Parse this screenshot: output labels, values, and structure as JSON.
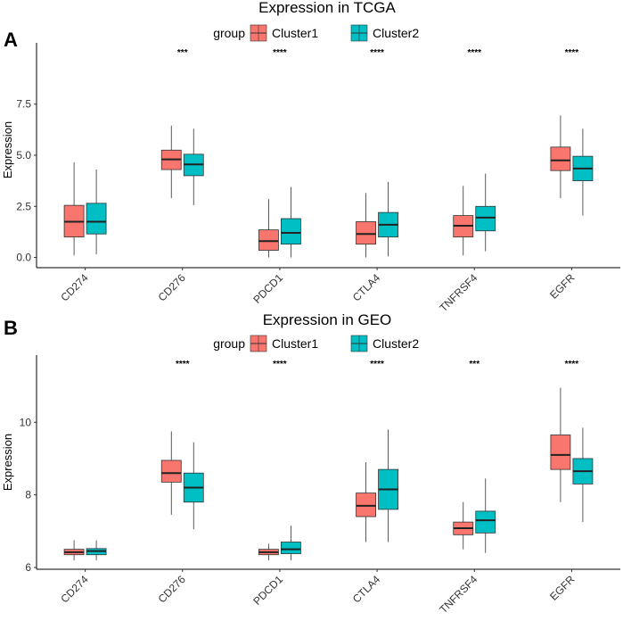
{
  "chart_data": [
    {
      "type": "boxplot",
      "panel_label": "A",
      "title": "Expression in TCGA",
      "legend_title": "group",
      "ylabel": "Expression",
      "xlabel": "",
      "ylim": [
        -0.5,
        10.5
      ],
      "yticks": [
        0,
        2.5,
        5,
        7.5
      ],
      "ytick_labels": [
        "0.0",
        "2.5",
        "5.0",
        "7.5"
      ],
      "categories": [
        "CD274",
        "CD276",
        "PDCD1",
        "CTLA4",
        "TNFRSF4",
        "EGFR"
      ],
      "significance": [
        "",
        "***",
        "****",
        "****",
        "****",
        "****"
      ],
      "series": [
        {
          "name": "Cluster1",
          "color": "#F8766D",
          "boxes": [
            {
              "min": 0.1,
              "q1": 1.0,
              "median": 1.75,
              "q3": 2.55,
              "max": 4.65
            },
            {
              "min": 2.9,
              "q1": 4.3,
              "median": 4.8,
              "q3": 5.25,
              "max": 6.45
            },
            {
              "min": 0.0,
              "q1": 0.35,
              "median": 0.8,
              "q3": 1.35,
              "max": 2.85
            },
            {
              "min": 0.0,
              "q1": 0.65,
              "median": 1.15,
              "q3": 1.75,
              "max": 3.15
            },
            {
              "min": 0.1,
              "q1": 1.0,
              "median": 1.55,
              "q3": 2.05,
              "max": 3.5
            },
            {
              "min": 2.9,
              "q1": 4.25,
              "median": 4.75,
              "q3": 5.4,
              "max": 6.95
            }
          ]
        },
        {
          "name": "Cluster2",
          "color": "#00BFC4",
          "boxes": [
            {
              "min": 0.15,
              "q1": 1.15,
              "median": 1.75,
              "q3": 2.65,
              "max": 4.3
            },
            {
              "min": 2.55,
              "q1": 4.0,
              "median": 4.55,
              "q3": 5.05,
              "max": 6.3
            },
            {
              "min": 0.0,
              "q1": 0.65,
              "median": 1.2,
              "q3": 1.9,
              "max": 3.45
            },
            {
              "min": 0.05,
              "q1": 1.0,
              "median": 1.6,
              "q3": 2.2,
              "max": 3.7
            },
            {
              "min": 0.3,
              "q1": 1.3,
              "median": 1.95,
              "q3": 2.5,
              "max": 4.1
            },
            {
              "min": 2.05,
              "q1": 3.75,
              "median": 4.35,
              "q3": 4.95,
              "max": 6.3
            }
          ]
        }
      ]
    },
    {
      "type": "boxplot",
      "panel_label": "B",
      "title": "Expression in GEO",
      "legend_title": "group",
      "ylabel": "Expression",
      "xlabel": "",
      "ylim": [
        5.95,
        11.85
      ],
      "yticks": [
        6,
        8,
        10
      ],
      "ytick_labels": [
        "6",
        "8",
        "10"
      ],
      "categories": [
        "CD274",
        "CD276",
        "PDCD1",
        "CTLA4",
        "TNFRSF4",
        "EGFR"
      ],
      "significance": [
        "",
        "****",
        "****",
        "****",
        "***",
        "****"
      ],
      "series": [
        {
          "name": "Cluster1",
          "color": "#F8766D",
          "boxes": [
            {
              "min": 6.2,
              "q1": 6.35,
              "median": 6.42,
              "q3": 6.5,
              "max": 6.75
            },
            {
              "min": 7.45,
              "q1": 8.35,
              "median": 8.6,
              "q3": 8.95,
              "max": 9.75
            },
            {
              "min": 6.2,
              "q1": 6.35,
              "median": 6.42,
              "q3": 6.5,
              "max": 6.65
            },
            {
              "min": 6.7,
              "q1": 7.4,
              "median": 7.7,
              "q3": 8.05,
              "max": 8.9
            },
            {
              "min": 6.5,
              "q1": 6.9,
              "median": 7.08,
              "q3": 7.25,
              "max": 7.8
            },
            {
              "min": 7.8,
              "q1": 8.7,
              "median": 9.1,
              "q3": 9.65,
              "max": 10.95
            }
          ]
        },
        {
          "name": "Cluster2",
          "color": "#00BFC4",
          "boxes": [
            {
              "min": 6.2,
              "q1": 6.35,
              "median": 6.45,
              "q3": 6.52,
              "max": 6.75
            },
            {
              "min": 7.05,
              "q1": 7.8,
              "median": 8.2,
              "q3": 8.6,
              "max": 9.45
            },
            {
              "min": 6.2,
              "q1": 6.38,
              "median": 6.5,
              "q3": 6.7,
              "max": 7.15
            },
            {
              "min": 6.7,
              "q1": 7.6,
              "median": 8.15,
              "q3": 8.7,
              "max": 9.8
            },
            {
              "min": 6.4,
              "q1": 6.95,
              "median": 7.3,
              "q3": 7.55,
              "max": 8.45
            },
            {
              "min": 7.25,
              "q1": 8.3,
              "median": 8.65,
              "q3": 9.0,
              "max": 9.85
            }
          ]
        }
      ]
    }
  ]
}
